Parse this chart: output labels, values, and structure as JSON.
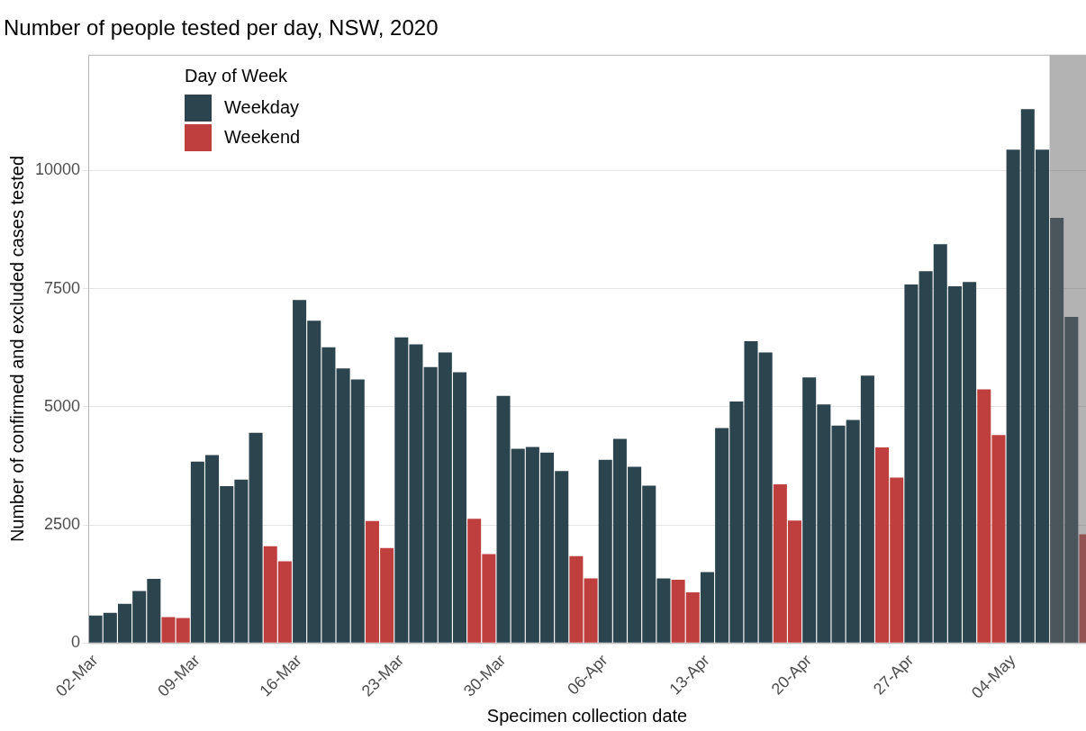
{
  "chart_data": {
    "type": "bar",
    "title": "Number of people tested per day, NSW, 2020",
    "xlabel": "Specimen collection date",
    "ylabel": "Number of confirmed and excluded cases tested",
    "legend_title": "Day of Week",
    "legend": "top left",
    "grid": "y",
    "x": [
      "2020-03-02",
      "2020-03-03",
      "2020-03-04",
      "2020-03-05",
      "2020-03-06",
      "2020-03-07",
      "2020-03-08",
      "2020-03-09",
      "2020-03-10",
      "2020-03-11",
      "2020-03-12",
      "2020-03-13",
      "2020-03-14",
      "2020-03-15",
      "2020-03-16",
      "2020-03-17",
      "2020-03-18",
      "2020-03-19",
      "2020-03-20",
      "2020-03-21",
      "2020-03-22",
      "2020-03-23",
      "2020-03-24",
      "2020-03-25",
      "2020-03-26",
      "2020-03-27",
      "2020-03-28",
      "2020-03-29",
      "2020-03-30",
      "2020-03-31",
      "2020-04-01",
      "2020-04-02",
      "2020-04-03",
      "2020-04-04",
      "2020-04-05",
      "2020-04-06",
      "2020-04-07",
      "2020-04-08",
      "2020-04-09",
      "2020-04-10",
      "2020-04-11",
      "2020-04-12",
      "2020-04-13",
      "2020-04-14",
      "2020-04-15",
      "2020-04-16",
      "2020-04-17",
      "2020-04-18",
      "2020-04-19",
      "2020-04-20",
      "2020-04-21",
      "2020-04-22",
      "2020-04-23",
      "2020-04-24",
      "2020-04-25",
      "2020-04-26",
      "2020-04-27",
      "2020-04-28",
      "2020-04-29",
      "2020-04-30",
      "2020-05-01",
      "2020-05-02",
      "2020-05-03",
      "2020-05-04",
      "2020-05-05",
      "2020-05-06",
      "2020-05-07",
      "2020-05-08",
      "2020-05-09"
    ],
    "series": [
      {
        "name": "Weekday",
        "color": "#2c444e",
        "values": [
          580,
          640,
          830,
          1100,
          1360,
          null,
          null,
          3840,
          3980,
          3320,
          3460,
          4450,
          null,
          null,
          7260,
          6820,
          6260,
          5810,
          5580,
          null,
          null,
          6470,
          6320,
          5840,
          6150,
          5730,
          null,
          null,
          5230,
          4110,
          4150,
          4030,
          3640,
          null,
          null,
          3880,
          4320,
          3730,
          3330,
          1370,
          null,
          null,
          1500,
          4550,
          5110,
          6390,
          6150,
          null,
          null,
          5620,
          5050,
          4600,
          4720,
          5660,
          null,
          null,
          7590,
          7870,
          8440,
          7550,
          7640,
          null,
          null,
          10440,
          11300,
          10440,
          9000,
          6900,
          null
        ]
      },
      {
        "name": "Weekend",
        "color": "#bf3f3f",
        "values": [
          null,
          null,
          null,
          null,
          null,
          550,
          530,
          null,
          null,
          null,
          null,
          null,
          2050,
          1730,
          null,
          null,
          null,
          null,
          null,
          2580,
          2010,
          null,
          null,
          null,
          null,
          null,
          2630,
          1880,
          null,
          null,
          null,
          null,
          null,
          1840,
          1370,
          null,
          null,
          null,
          null,
          null,
          1340,
          1070,
          null,
          null,
          null,
          null,
          null,
          3360,
          2590,
          null,
          null,
          null,
          null,
          null,
          4140,
          3500,
          null,
          null,
          null,
          null,
          null,
          5370,
          4400,
          null,
          null,
          null,
          null,
          null,
          2300
        ]
      }
    ],
    "xlim": [
      "2020-03-01T12:00",
      "2020-05-09T00:00"
    ],
    "xticks": [
      {
        "value": "2020-03-02",
        "label": "02-Mar"
      },
      {
        "value": "2020-03-09",
        "label": "09-Mar"
      },
      {
        "value": "2020-03-16",
        "label": "16-Mar"
      },
      {
        "value": "2020-03-23",
        "label": "23-Mar"
      },
      {
        "value": "2020-03-30",
        "label": "30-Mar"
      },
      {
        "value": "2020-04-06",
        "label": "06-Apr"
      },
      {
        "value": "2020-04-13",
        "label": "13-Apr"
      },
      {
        "value": "2020-04-20",
        "label": "20-Apr"
      },
      {
        "value": "2020-04-27",
        "label": "27-Apr"
      },
      {
        "value": "2020-05-04",
        "label": "04-May"
      }
    ],
    "ylim": [
      0,
      12450
    ],
    "yticks": [
      0,
      2500,
      5000,
      7500,
      10000
    ],
    "bands": [
      {
        "axis": "x",
        "from": "2020-05-06T12:00",
        "to": "2020-05-09T00:00",
        "color": "#676767"
      }
    ]
  }
}
